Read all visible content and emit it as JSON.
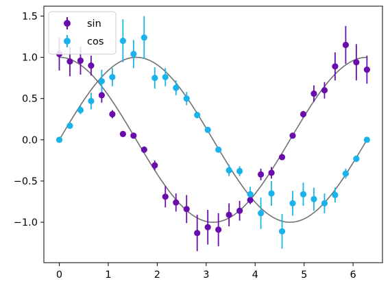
{
  "chart_data": {
    "type": "scatter",
    "title": "",
    "xlabel": "",
    "ylabel": "",
    "xlim": [
      -0.315,
      6.6
    ],
    "ylim": [
      -1.49,
      1.62
    ],
    "grid": false,
    "legend_position": "top-left",
    "x_ticks": [
      0,
      1,
      2,
      3,
      4,
      5,
      6
    ],
    "x_tick_labels": [
      "0",
      "1",
      "2",
      "3",
      "4",
      "5",
      "6"
    ],
    "y_ticks": [
      -1.0,
      -0.5,
      0.0,
      0.5,
      1.0,
      1.5
    ],
    "y_tick_labels": [
      "−1.0",
      "−0.5",
      "0.0",
      "0.5",
      "1.0",
      "1.5"
    ],
    "x": [
      0.0,
      0.2166,
      0.4333,
      0.6499,
      0.8666,
      1.0832,
      1.2999,
      1.5165,
      1.7332,
      1.9498,
      2.1665,
      2.3831,
      2.5998,
      2.8164,
      3.0331,
      3.2497,
      3.4664,
      3.683,
      3.8997,
      4.1163,
      4.333,
      4.5496,
      4.7663,
      4.9829,
      5.1996,
      5.4162,
      5.6329,
      5.8495,
      6.0662,
      6.2832
    ],
    "series": [
      {
        "name": "sin",
        "color": "#6a0dad",
        "values": [
          1.04,
          0.95,
          0.96,
          0.9,
          0.54,
          0.31,
          0.07,
          0.05,
          -0.12,
          -0.31,
          -0.69,
          -0.76,
          -0.84,
          -1.13,
          -1.06,
          -1.09,
          -0.91,
          -0.86,
          -0.73,
          -0.42,
          -0.4,
          -0.21,
          0.05,
          0.31,
          0.56,
          0.6,
          0.89,
          1.15,
          0.94,
          0.85
        ],
        "errors": [
          0.2,
          0.18,
          0.17,
          0.12,
          0.09,
          0.05,
          0.02,
          0.03,
          0.04,
          0.06,
          0.13,
          0.11,
          0.17,
          0.22,
          0.21,
          0.2,
          0.14,
          0.12,
          0.05,
          0.07,
          0.07,
          0.02,
          0.03,
          0.04,
          0.1,
          0.1,
          0.17,
          0.23,
          0.22,
          0.17
        ],
        "curve": "cos"
      },
      {
        "name": "cos",
        "color": "#1ab2ea",
        "values": [
          0.0,
          0.17,
          0.36,
          0.47,
          0.71,
          0.76,
          1.2,
          1.04,
          1.24,
          0.75,
          0.76,
          0.63,
          0.5,
          0.3,
          0.12,
          -0.12,
          -0.37,
          -0.38,
          -0.66,
          -0.89,
          -0.65,
          -1.11,
          -0.77,
          -0.66,
          -0.72,
          -0.77,
          -0.67,
          -0.41,
          -0.23,
          0.0
        ],
        "errors": [
          0.0,
          0.02,
          0.05,
          0.1,
          0.14,
          0.11,
          0.26,
          0.17,
          0.26,
          0.13,
          0.11,
          0.09,
          0.08,
          0.04,
          0.02,
          0.02,
          0.07,
          0.06,
          0.09,
          0.19,
          0.15,
          0.21,
          0.15,
          0.14,
          0.14,
          0.12,
          0.09,
          0.06,
          0.04,
          0.0
        ],
        "curve": "sin"
      }
    ],
    "fit_curve_color": "#707070"
  }
}
